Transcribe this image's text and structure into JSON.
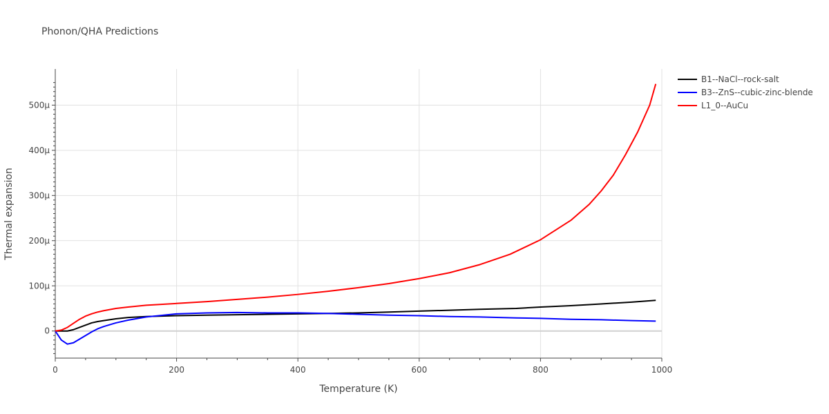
{
  "chart_data": {
    "type": "line",
    "title": "Phonon/QHA Predictions",
    "xlabel": "Temperature (K)",
    "ylabel": "Thermal expansion",
    "xlim": [
      0,
      1000
    ],
    "ylim": [
      -6e-05,
      0.00058
    ],
    "x_ticks": [
      0,
      200,
      400,
      600,
      800,
      1000
    ],
    "x_tick_labels": [
      "0",
      "200",
      "400",
      "600",
      "800",
      "1000"
    ],
    "y_ticks": [
      0,
      0.0001,
      0.0002,
      0.0003,
      0.0004,
      0.0005
    ],
    "y_tick_labels": [
      "0",
      "100µ",
      "200µ",
      "300µ",
      "400µ",
      "500µ"
    ],
    "grid": true,
    "legend_position": "top-right",
    "series": [
      {
        "name": "B1--NaCl--rock-salt",
        "color": "#000000",
        "x": [
          0,
          10,
          20,
          30,
          40,
          50,
          60,
          70,
          80,
          100,
          120,
          150,
          200,
          250,
          300,
          350,
          400,
          450,
          500,
          550,
          600,
          650,
          700,
          760,
          800,
          850,
          900,
          950,
          990
        ],
        "y": [
          0,
          0,
          0,
          3e-06,
          8e-06,
          1.3e-05,
          1.8e-05,
          2.1e-05,
          2.3e-05,
          2.7e-05,
          3e-05,
          3.2e-05,
          3.4e-05,
          3.5e-05,
          3.6e-05,
          3.7e-05,
          3.8e-05,
          3.9e-05,
          4e-05,
          4.2e-05,
          4.4e-05,
          4.6e-05,
          4.8e-05,
          5e-05,
          5.3e-05,
          5.6e-05,
          6e-05,
          6.4e-05,
          6.8e-05
        ]
      },
      {
        "name": "B3--ZnS--cubic-zinc-blende",
        "color": "#0000ff",
        "x": [
          0,
          10,
          20,
          30,
          40,
          50,
          60,
          70,
          80,
          100,
          120,
          150,
          200,
          250,
          300,
          350,
          400,
          450,
          500,
          550,
          600,
          650,
          700,
          760,
          800,
          850,
          900,
          950,
          990
        ],
        "y": [
          0,
          -2e-05,
          -2.9e-05,
          -2.6e-05,
          -1.8e-05,
          -1e-05,
          -2e-06,
          5e-06,
          1e-05,
          1.8e-05,
          2.4e-05,
          3.1e-05,
          3.8e-05,
          4e-05,
          4.1e-05,
          4e-05,
          4e-05,
          3.9e-05,
          3.7e-05,
          3.5e-05,
          3.4e-05,
          3.2e-05,
          3.1e-05,
          2.9e-05,
          2.8e-05,
          2.6e-05,
          2.5e-05,
          2.3e-05,
          2.2e-05
        ]
      },
      {
        "name": "L1_0--AuCu",
        "color": "#ff0000",
        "x": [
          0,
          10,
          20,
          30,
          40,
          50,
          60,
          70,
          80,
          100,
          120,
          150,
          200,
          250,
          300,
          350,
          400,
          450,
          500,
          550,
          600,
          650,
          700,
          750,
          800,
          850,
          880,
          900,
          920,
          940,
          960,
          980,
          990
        ],
        "y": [
          0,
          2e-06,
          8e-06,
          1.7e-05,
          2.6e-05,
          3.3e-05,
          3.8e-05,
          4.2e-05,
          4.5e-05,
          5e-05,
          5.3e-05,
          5.7e-05,
          6.1e-05,
          6.5e-05,
          7e-05,
          7.5e-05,
          8.1e-05,
          8.8e-05,
          9.6e-05,
          0.000105,
          0.000116,
          0.000129,
          0.000147,
          0.00017,
          0.000202,
          0.000245,
          0.00028,
          0.00031,
          0.000345,
          0.00039,
          0.00044,
          0.0005,
          0.000547
        ]
      }
    ]
  }
}
